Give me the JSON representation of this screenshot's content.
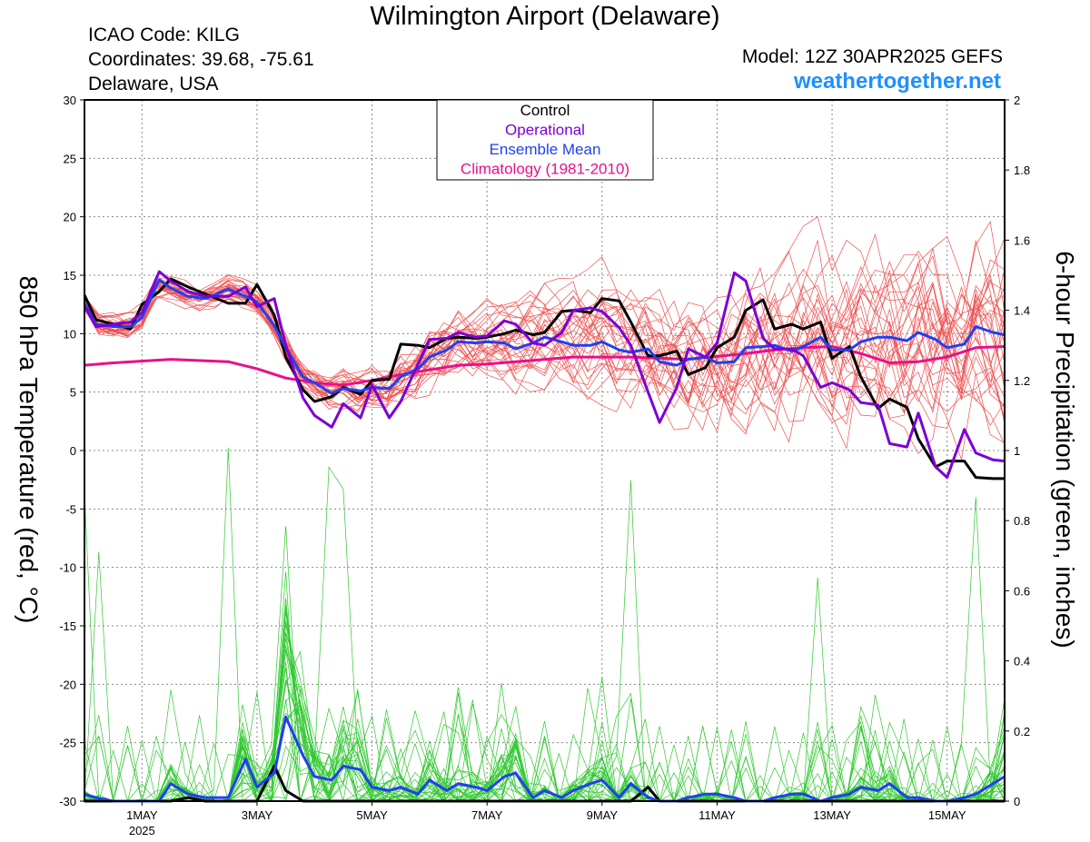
{
  "header": {
    "title": "Wilmington Airport (Delaware)",
    "icao": "ICAO Code: KILG",
    "coordinates": "Coordinates: 39.68, -75.61",
    "region": "Delaware, USA",
    "model": "Model: 12Z 30APR2025 GEFS",
    "brand": "weathertogether.net"
  },
  "colors": {
    "control": "#000000",
    "operational": "#7b00d4",
    "ensemble_mean": "#2040f0",
    "climatology": "#e8108a",
    "members_temp": "#f05050",
    "members_precip": "#30c830",
    "grid": "#888888"
  },
  "chart_data": {
    "type": "line",
    "x_unit": "days since 30 APR 2025 12Z",
    "xlim": [
      0.5,
      16.5
    ],
    "y_left": {
      "label": "850 hPa Temperature (red, °C)",
      "lim": [
        -30,
        30
      ],
      "ticks": [
        30,
        25,
        20,
        15,
        10,
        5,
        0,
        -5,
        -10,
        -15,
        -20,
        -25,
        -30
      ]
    },
    "y_right": {
      "label": "6-hour Precipitation (green, inches)",
      "lim": [
        0,
        2
      ],
      "ticks": [
        2,
        1.8,
        1.6,
        1.4,
        1.2,
        1,
        0.8,
        0.6,
        0.4,
        0.2,
        0
      ]
    },
    "x_ticks": [
      {
        "x": 1.5,
        "label": "1MAY",
        "sub": "2025"
      },
      {
        "x": 3.5,
        "label": "3MAY",
        "sub": ""
      },
      {
        "x": 5.5,
        "label": "5MAY",
        "sub": ""
      },
      {
        "x": 7.5,
        "label": "7MAY",
        "sub": ""
      },
      {
        "x": 9.5,
        "label": "9MAY",
        "sub": ""
      },
      {
        "x": 11.5,
        "label": "11MAY",
        "sub": ""
      },
      {
        "x": 13.5,
        "label": "13MAY",
        "sub": ""
      },
      {
        "x": 15.5,
        "label": "15MAY",
        "sub": ""
      }
    ],
    "legend": [
      {
        "key": "control",
        "label": "Control"
      },
      {
        "key": "operational",
        "label": "Operational"
      },
      {
        "key": "ensemble_mean",
        "label": "Ensemble Mean"
      },
      {
        "key": "climatology",
        "label": "Climatology (1981-2010)"
      }
    ],
    "series": [
      {
        "name": "Control",
        "key": "control",
        "axis": "left",
        "x": [
          0.5,
          0.7,
          1.0,
          1.3,
          1.5,
          1.8,
          2.0,
          2.3,
          2.6,
          3.0,
          3.3,
          3.5,
          3.8,
          4.0,
          4.3,
          4.5,
          4.8,
          5.0,
          5.3,
          5.5,
          5.8,
          6.0,
          6.3,
          6.5,
          6.8,
          7.0,
          7.3,
          7.5,
          7.8,
          8.0,
          8.3,
          8.5,
          8.8,
          9.0,
          9.3,
          9.5,
          9.8,
          10.0,
          10.3,
          10.5,
          10.8,
          11.0,
          11.3,
          11.5,
          11.8,
          12.0,
          12.3,
          12.5,
          12.8,
          13.0,
          13.3,
          13.5,
          13.8,
          14.0,
          14.3,
          14.5,
          14.8,
          15.0,
          15.3,
          15.5,
          15.8,
          16.0,
          16.3,
          16.5
        ],
        "y": [
          13.3,
          11.2,
          10.8,
          10.4,
          12.5,
          13.6,
          14.7,
          14.0,
          13.4,
          12.6,
          12.6,
          14.2,
          11.6,
          8.0,
          5.2,
          4.2,
          4.6,
          5.4,
          4.8,
          6.0,
          6.1,
          9.1,
          9.0,
          8.8,
          9.6,
          9.7,
          9.6,
          9.7,
          10.0,
          10.3,
          9.9,
          10.1,
          11.9,
          12.0,
          11.8,
          13.0,
          12.8,
          11.0,
          8.1,
          8.1,
          8.5,
          6.5,
          7.1,
          8.8,
          9.7,
          12.0,
          12.9,
          10.4,
          10.8,
          10.4,
          11.0,
          7.9,
          8.9,
          6.3,
          3.6,
          4.4,
          3.7,
          1.0,
          -1.4,
          -0.9,
          -0.9,
          -2.3,
          -2.4,
          -2.4
        ]
      },
      {
        "name": "Operational",
        "key": "operational",
        "axis": "left",
        "x": [
          0.5,
          0.7,
          1.0,
          1.3,
          1.5,
          1.8,
          2.0,
          2.3,
          2.6,
          3.0,
          3.3,
          3.5,
          3.8,
          4.0,
          4.3,
          4.5,
          4.8,
          5.0,
          5.3,
          5.5,
          5.8,
          6.0,
          6.3,
          6.5,
          6.8,
          7.0,
          7.3,
          7.5,
          7.8,
          8.0,
          8.3,
          8.5,
          8.8,
          9.0,
          9.3,
          9.5,
          9.8,
          10.0,
          10.3,
          10.5,
          10.8,
          11.0,
          11.3,
          11.5,
          11.8,
          12.0,
          12.3,
          12.5,
          12.8,
          13.0,
          13.3,
          13.5,
          13.8,
          14.0,
          14.3,
          14.5,
          14.8,
          15.0,
          15.3,
          15.5,
          15.8,
          16.0,
          16.3,
          16.5
        ],
        "y": [
          12.4,
          10.6,
          10.8,
          11.0,
          11.8,
          15.3,
          14.5,
          13.6,
          13.2,
          13.2,
          14.0,
          12.3,
          13.0,
          9.0,
          4.5,
          3.0,
          2.0,
          4.0,
          2.8,
          5.6,
          2.8,
          4.2,
          7.4,
          9.5,
          9.6,
          10.1,
          9.7,
          9.8,
          11.1,
          10.8,
          9.2,
          9.0,
          10.1,
          12.0,
          12.2,
          11.9,
          10.5,
          9.0,
          5.0,
          2.4,
          5.4,
          8.7,
          8.0,
          9.2,
          15.2,
          14.5,
          9.6,
          8.7,
          8.7,
          8.1,
          5.4,
          5.8,
          5.2,
          4.1,
          3.9,
          0.6,
          0.3,
          3.2,
          -1.4,
          -2.3,
          1.8,
          -0.2,
          -0.8,
          -0.9
        ]
      },
      {
        "name": "Ensemble Mean",
        "key": "ensemble_mean",
        "axis": "left",
        "x": [
          0.5,
          0.7,
          1.0,
          1.3,
          1.5,
          1.8,
          2.0,
          2.3,
          2.6,
          3.0,
          3.3,
          3.5,
          3.8,
          4.0,
          4.3,
          4.5,
          4.8,
          5.0,
          5.3,
          5.5,
          5.8,
          6.0,
          6.3,
          6.5,
          6.8,
          7.0,
          7.3,
          7.5,
          7.8,
          8.0,
          8.3,
          8.5,
          8.8,
          9.0,
          9.3,
          9.5,
          9.8,
          10.0,
          10.3,
          10.5,
          10.8,
          11.0,
          11.3,
          11.5,
          11.8,
          12.0,
          12.3,
          12.5,
          12.8,
          13.0,
          13.3,
          13.5,
          13.8,
          14.0,
          14.3,
          14.5,
          14.8,
          15.0,
          15.3,
          15.5,
          15.8,
          16.0,
          16.3,
          16.5
        ],
        "y": [
          12.6,
          10.8,
          10.6,
          10.6,
          11.4,
          14.6,
          13.9,
          13.2,
          13.0,
          13.8,
          13.2,
          12.7,
          10.7,
          8.8,
          6.3,
          5.8,
          4.9,
          5.3,
          5.1,
          5.4,
          5.3,
          6.3,
          7.0,
          8.0,
          8.6,
          9.3,
          9.2,
          9.3,
          9.2,
          8.7,
          9.2,
          9.7,
          9.3,
          9.0,
          9.0,
          9.3,
          8.6,
          8.4,
          8.7,
          7.6,
          7.3,
          7.8,
          8.0,
          7.5,
          7.6,
          8.8,
          8.9,
          9.0,
          8.5,
          8.9,
          9.7,
          8.6,
          8.6,
          9.3,
          9.7,
          9.7,
          9.4,
          10.1,
          9.5,
          8.8,
          9.1,
          10.6,
          10.1,
          9.9
        ]
      },
      {
        "name": "Climatology (1981-2010)",
        "key": "climatology",
        "axis": "left",
        "x": [
          0.5,
          1.0,
          2.0,
          3.0,
          3.5,
          4.0,
          4.5,
          5.0,
          5.5,
          6.0,
          6.5,
          7.0,
          7.5,
          8.0,
          9.0,
          10.0,
          11.0,
          12.0,
          12.5,
          13.0,
          13.5,
          14.0,
          14.5,
          15.0,
          15.5,
          16.0,
          16.5
        ],
        "y": [
          7.3,
          7.5,
          7.8,
          7.6,
          7.0,
          6.2,
          5.8,
          5.6,
          6.0,
          6.5,
          6.9,
          7.3,
          7.4,
          7.6,
          8.0,
          8.0,
          7.8,
          8.3,
          8.6,
          8.8,
          8.9,
          8.3,
          7.5,
          7.6,
          8.0,
          8.8,
          8.9
        ]
      },
      {
        "name": "Control precipitation",
        "key": "control",
        "axis": "right",
        "x": [
          0.5,
          0.7,
          1.0,
          1.3,
          1.5,
          2.0,
          2.3,
          2.6,
          3.0,
          3.3,
          3.5,
          3.8,
          4.0,
          4.3,
          4.5,
          4.8,
          5.0,
          5.5,
          6.0,
          6.5,
          7.0,
          7.5,
          8.0,
          8.5,
          9.0,
          9.5,
          10.0,
          10.3,
          10.5,
          11.0,
          12.0,
          13.0,
          14.0,
          15.0,
          16.0,
          16.5
        ],
        "y": [
          0.0,
          0.0,
          0.0,
          0.0,
          0.0,
          0.0,
          0.01,
          0.0,
          0.0,
          0.0,
          0.0,
          0.1,
          0.03,
          0.0,
          0.0,
          0.0,
          0.0,
          0.0,
          0.0,
          0.0,
          0.0,
          0.0,
          0.0,
          0.0,
          0.0,
          0.0,
          0.0,
          0.04,
          0.0,
          0.0,
          0.0,
          0.0,
          0.0,
          0.0,
          0.0,
          0.0
        ]
      },
      {
        "name": "Ensemble Mean precipitation",
        "key": "ensemble_mean",
        "axis": "right",
        "x": [
          0.5,
          0.7,
          1.0,
          1.3,
          1.5,
          1.8,
          2.0,
          2.3,
          2.6,
          3.0,
          3.3,
          3.5,
          3.8,
          4.0,
          4.3,
          4.5,
          4.8,
          5.0,
          5.3,
          5.5,
          5.8,
          6.0,
          6.3,
          6.5,
          6.8,
          7.0,
          7.3,
          7.5,
          7.8,
          8.0,
          8.3,
          8.5,
          8.8,
          9.0,
          9.3,
          9.5,
          9.8,
          10.0,
          10.3,
          10.5,
          10.8,
          11.0,
          11.3,
          11.5,
          11.8,
          12.0,
          12.3,
          12.5,
          12.8,
          13.0,
          13.3,
          13.5,
          13.8,
          14.0,
          14.3,
          14.5,
          14.8,
          15.0,
          15.3,
          15.5,
          15.8,
          16.0,
          16.3,
          16.5
        ],
        "y": [
          0.02,
          0.01,
          0.0,
          0.0,
          0.0,
          0.0,
          0.05,
          0.02,
          0.01,
          0.01,
          0.12,
          0.04,
          0.08,
          0.24,
          0.13,
          0.07,
          0.06,
          0.1,
          0.09,
          0.04,
          0.03,
          0.04,
          0.02,
          0.06,
          0.03,
          0.05,
          0.04,
          0.03,
          0.07,
          0.08,
          0.01,
          0.03,
          0.01,
          0.03,
          0.05,
          0.06,
          0.01,
          0.05,
          0.01,
          0.0,
          0.0,
          0.01,
          0.02,
          0.02,
          0.01,
          0.0,
          0.0,
          0.01,
          0.02,
          0.02,
          0.0,
          0.01,
          0.02,
          0.04,
          0.03,
          0.05,
          0.01,
          0.01,
          0.0,
          0.0,
          0.01,
          0.02,
          0.05,
          0.07
        ]
      }
    ]
  }
}
